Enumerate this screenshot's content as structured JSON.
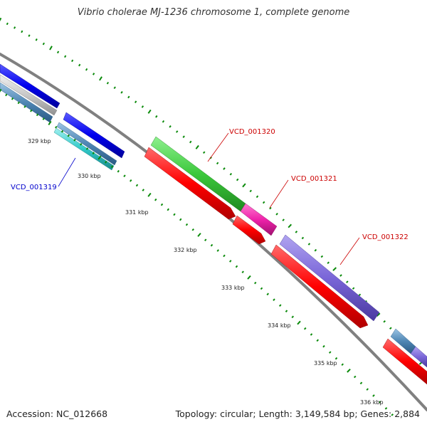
{
  "title": "Vibrio cholerae MJ-1236 chromosome 1, complete genome",
  "footer": {
    "accession": "Accession: NC_012668",
    "topology": "Topology: circular; Length: 3,149,584 bp; Genes: 2,884"
  },
  "ticks": [
    "329 kbp",
    "330 kbp",
    "331 kbp",
    "332 kbp",
    "333 kbp",
    "334 kbp",
    "335 kbp",
    "336 kbp"
  ],
  "gene_labels": [
    {
      "text": "VCD_001319",
      "color": "#0000cc"
    },
    {
      "text": "VCD_001320",
      "color": "#cc0000"
    },
    {
      "text": "VCD_001321",
      "color": "#cc0000"
    },
    {
      "text": "VCD_001322",
      "color": "#cc0000"
    }
  ],
  "colors": {
    "backbone": "#808080",
    "forward_cds": "#0000ee",
    "reverse_cds": "#ff0000",
    "green_feature": "#3cc83c",
    "magenta_feature": "#ee22aa",
    "purple_feature": "#7a66d8",
    "steel_feature": "#4f86b4",
    "cyan_feature": "#30c8c8",
    "gc_skew": "#0a8a0a"
  }
}
